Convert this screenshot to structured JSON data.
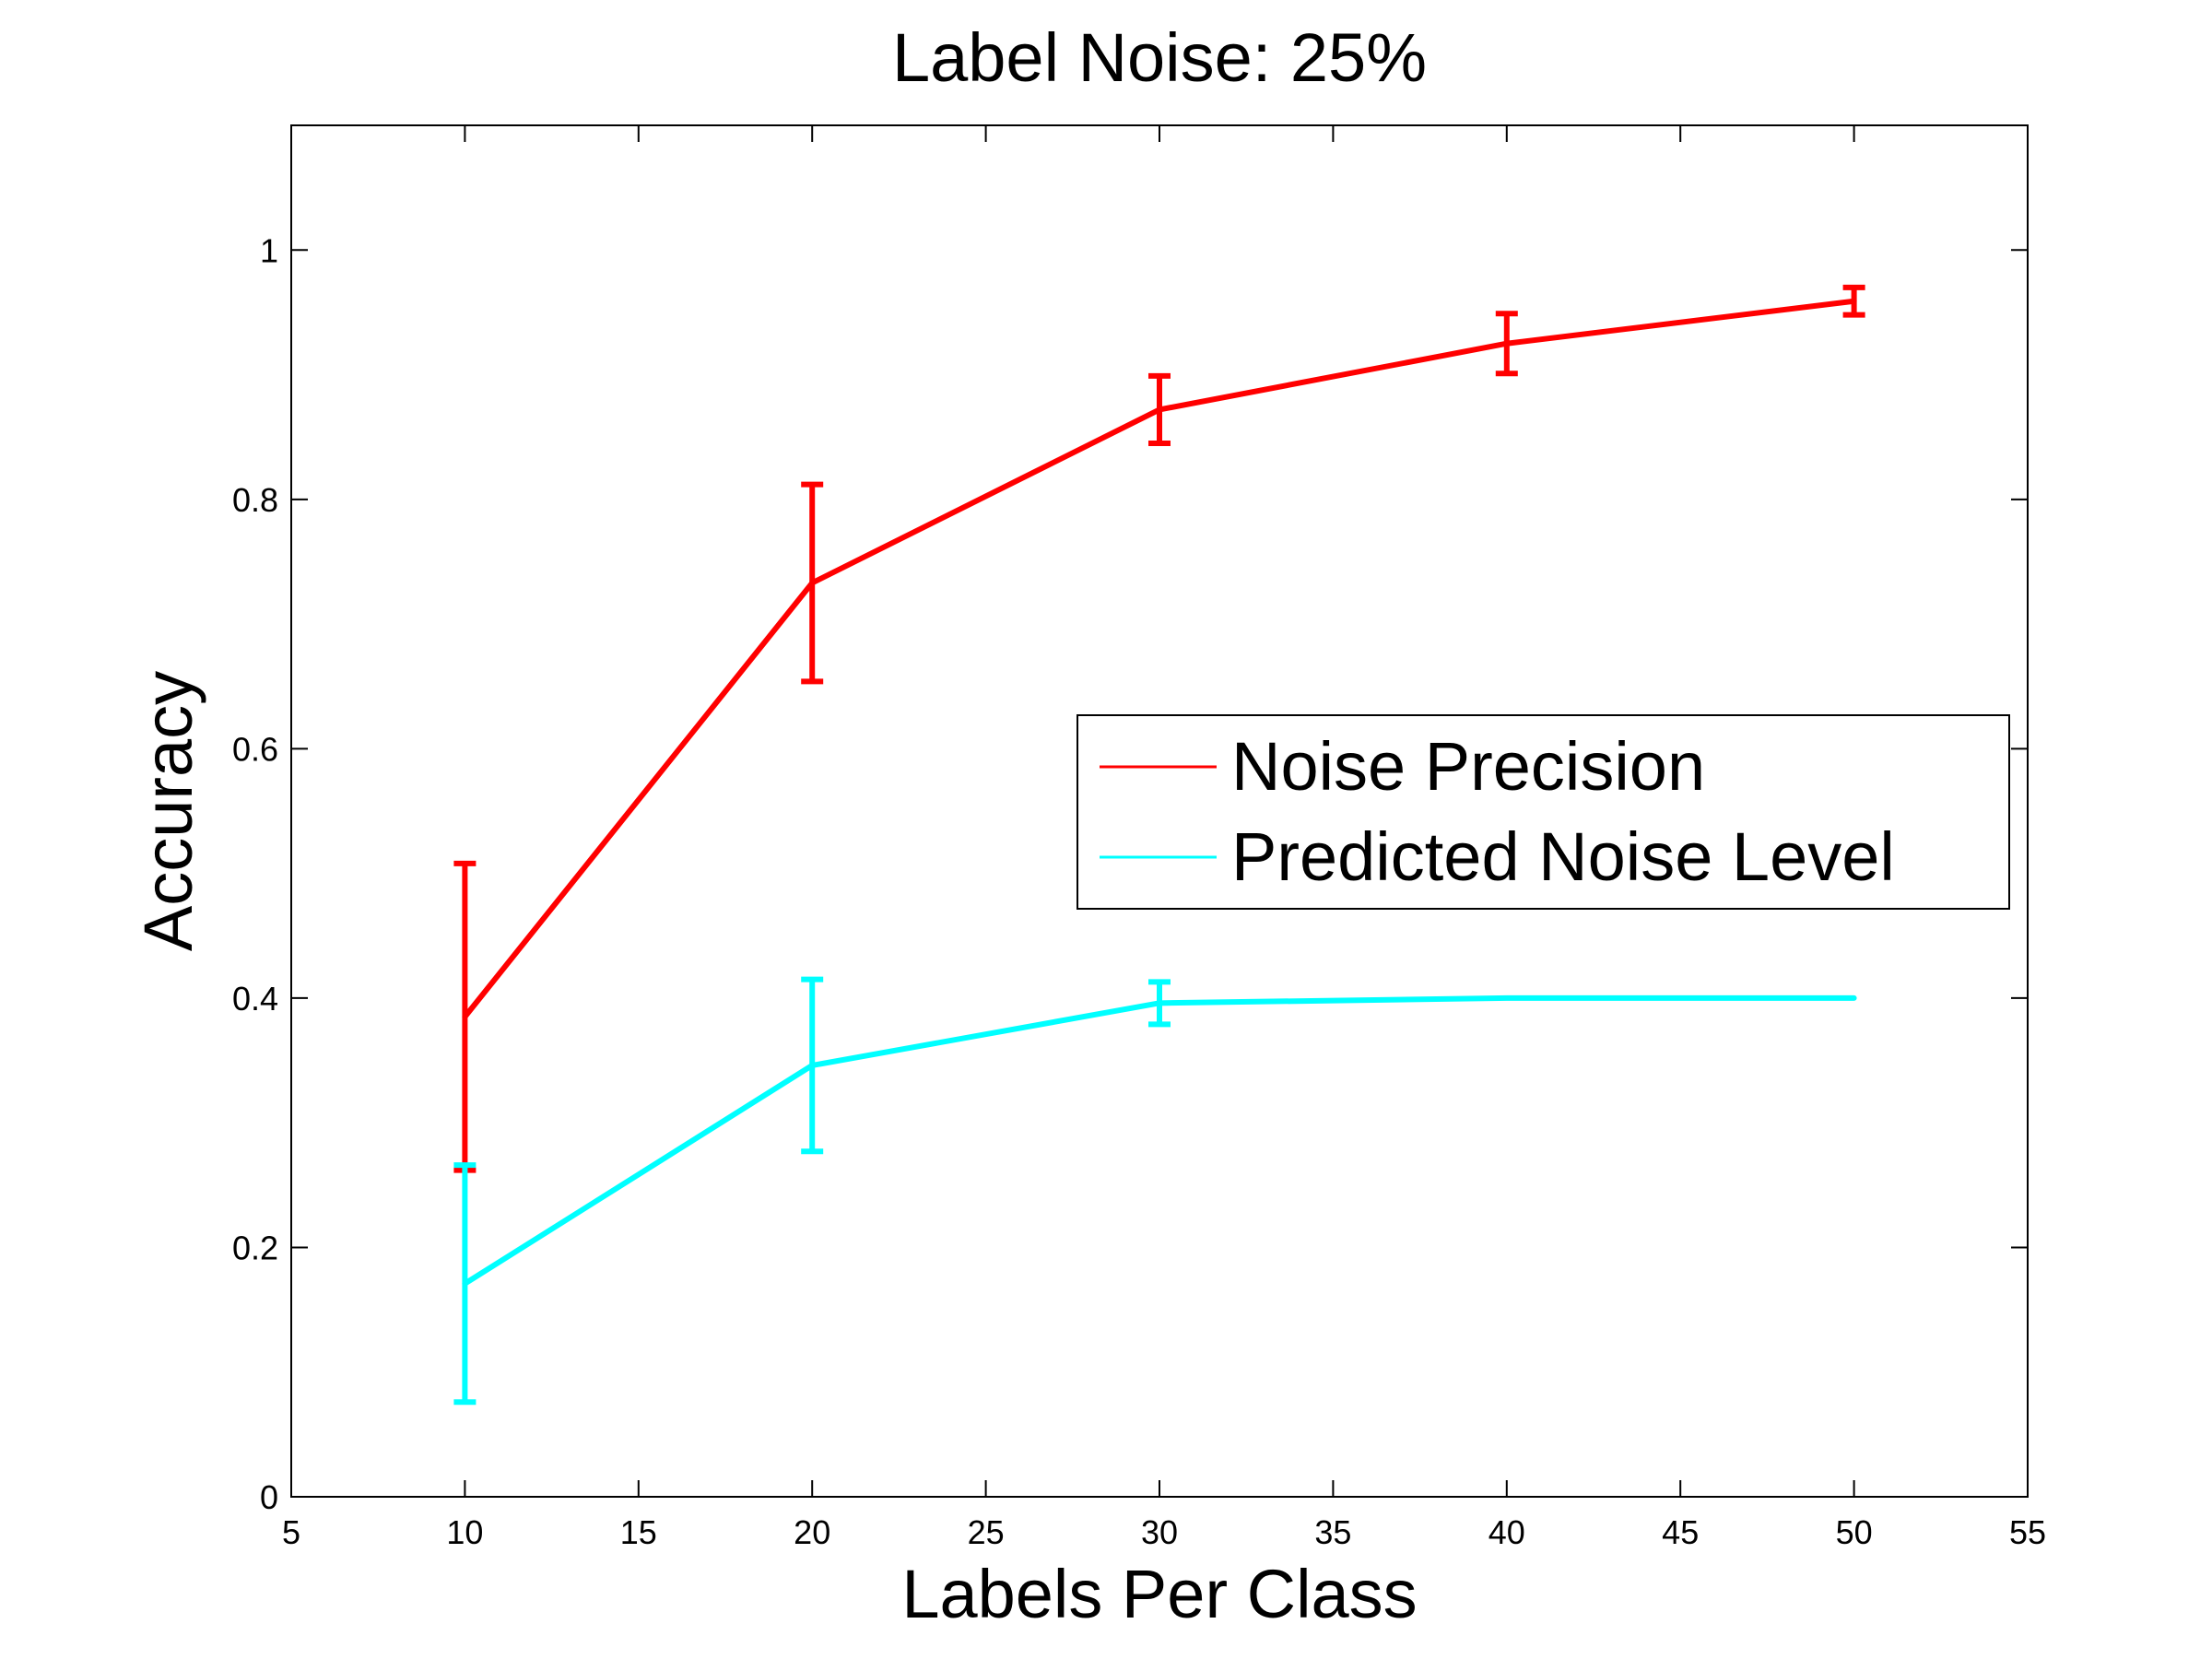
{
  "chart_data": {
    "type": "line",
    "title": "Label Noise: 25%",
    "xlabel": "Labels Per Class",
    "ylabel": "Accuracy",
    "xlim": [
      5,
      55
    ],
    "ylim": [
      0,
      1.1
    ],
    "xticks": [
      5,
      10,
      15,
      20,
      25,
      30,
      35,
      40,
      45,
      50,
      55
    ],
    "yticks": [
      0,
      0.2,
      0.4,
      0.6,
      0.8,
      1
    ],
    "xtick_labels": [
      "5",
      "10",
      "15",
      "20",
      "25",
      "30",
      "35",
      "40",
      "45",
      "50",
      "55"
    ],
    "ytick_labels": [
      "0",
      "0.2",
      "0.4",
      "0.6",
      "0.8",
      "1"
    ],
    "grid": false,
    "legend_position": "center-right",
    "series": [
      {
        "name": "Noise Precision",
        "color": "#ff0000",
        "x": [
          10,
          20,
          30,
          40,
          50
        ],
        "y": [
          0.385,
          0.733,
          0.872,
          0.925,
          0.959
        ],
        "err": [
          0.123,
          0.079,
          0.027,
          0.024,
          0.011
        ]
      },
      {
        "name": "Predicted Noise Level",
        "color": "#00ffff",
        "x": [
          10,
          20,
          30,
          40,
          50
        ],
        "y": [
          0.171,
          0.346,
          0.396,
          0.4,
          0.4
        ],
        "err": [
          0.095,
          0.069,
          0.017,
          null,
          null
        ]
      }
    ]
  }
}
